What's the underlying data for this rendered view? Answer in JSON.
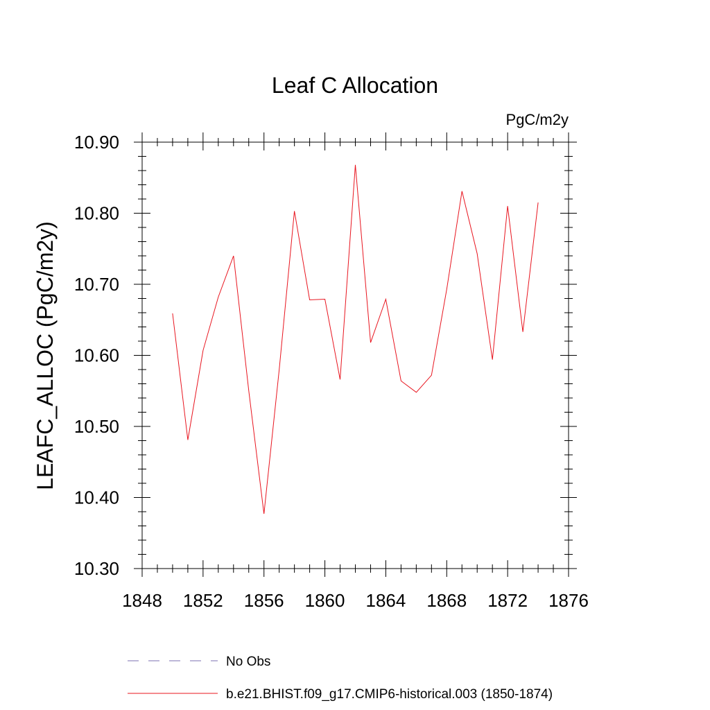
{
  "chart_data": {
    "type": "line",
    "title": "Leaf C Allocation",
    "units_label": "PgC/m2y",
    "ylabel": "LEAFC_ALLOC  (PgC/m2y)",
    "xlabel": "",
    "xlim": [
      1848,
      1876
    ],
    "ylim": [
      10.3,
      10.9
    ],
    "x_major_ticks": [
      1848,
      1852,
      1856,
      1860,
      1864,
      1868,
      1872,
      1876
    ],
    "x_tick_labels": [
      "1848",
      "1852",
      "1856",
      "1860",
      "1864",
      "1868",
      "1872",
      "1876"
    ],
    "y_major_ticks": [
      10.3,
      10.4,
      10.5,
      10.6,
      10.7,
      10.8,
      10.9
    ],
    "y_tick_labels": [
      "10.30",
      "10.40",
      "10.50",
      "10.60",
      "10.70",
      "10.80",
      "10.90"
    ],
    "grid": false,
    "legend_position": "bottom",
    "series": [
      {
        "name": "b.e21.BHIST.f09_g17.CMIP6-historical.003 (1850-1874)",
        "color": "#e8141e",
        "style": "solid",
        "x": [
          1850,
          1851,
          1852,
          1853,
          1854,
          1855,
          1856,
          1857,
          1858,
          1859,
          1860,
          1861,
          1862,
          1863,
          1864,
          1865,
          1866,
          1867,
          1868,
          1869,
          1870,
          1871,
          1872,
          1873,
          1874
        ],
        "y": [
          10.659,
          10.481,
          10.607,
          10.682,
          10.74,
          10.55,
          10.377,
          10.58,
          10.803,
          10.678,
          10.679,
          10.566,
          10.868,
          10.618,
          10.679,
          10.564,
          10.548,
          10.572,
          10.693,
          10.831,
          10.743,
          10.594,
          10.81,
          10.633,
          10.815
        ]
      }
    ],
    "legend": [
      {
        "label": "No Obs",
        "color": "#7b6fb0",
        "style": "dashed"
      },
      {
        "label": "b.e21.BHIST.f09_g17.CMIP6-historical.003 (1850-1874)",
        "color": "#e8141e",
        "style": "solid"
      }
    ]
  }
}
